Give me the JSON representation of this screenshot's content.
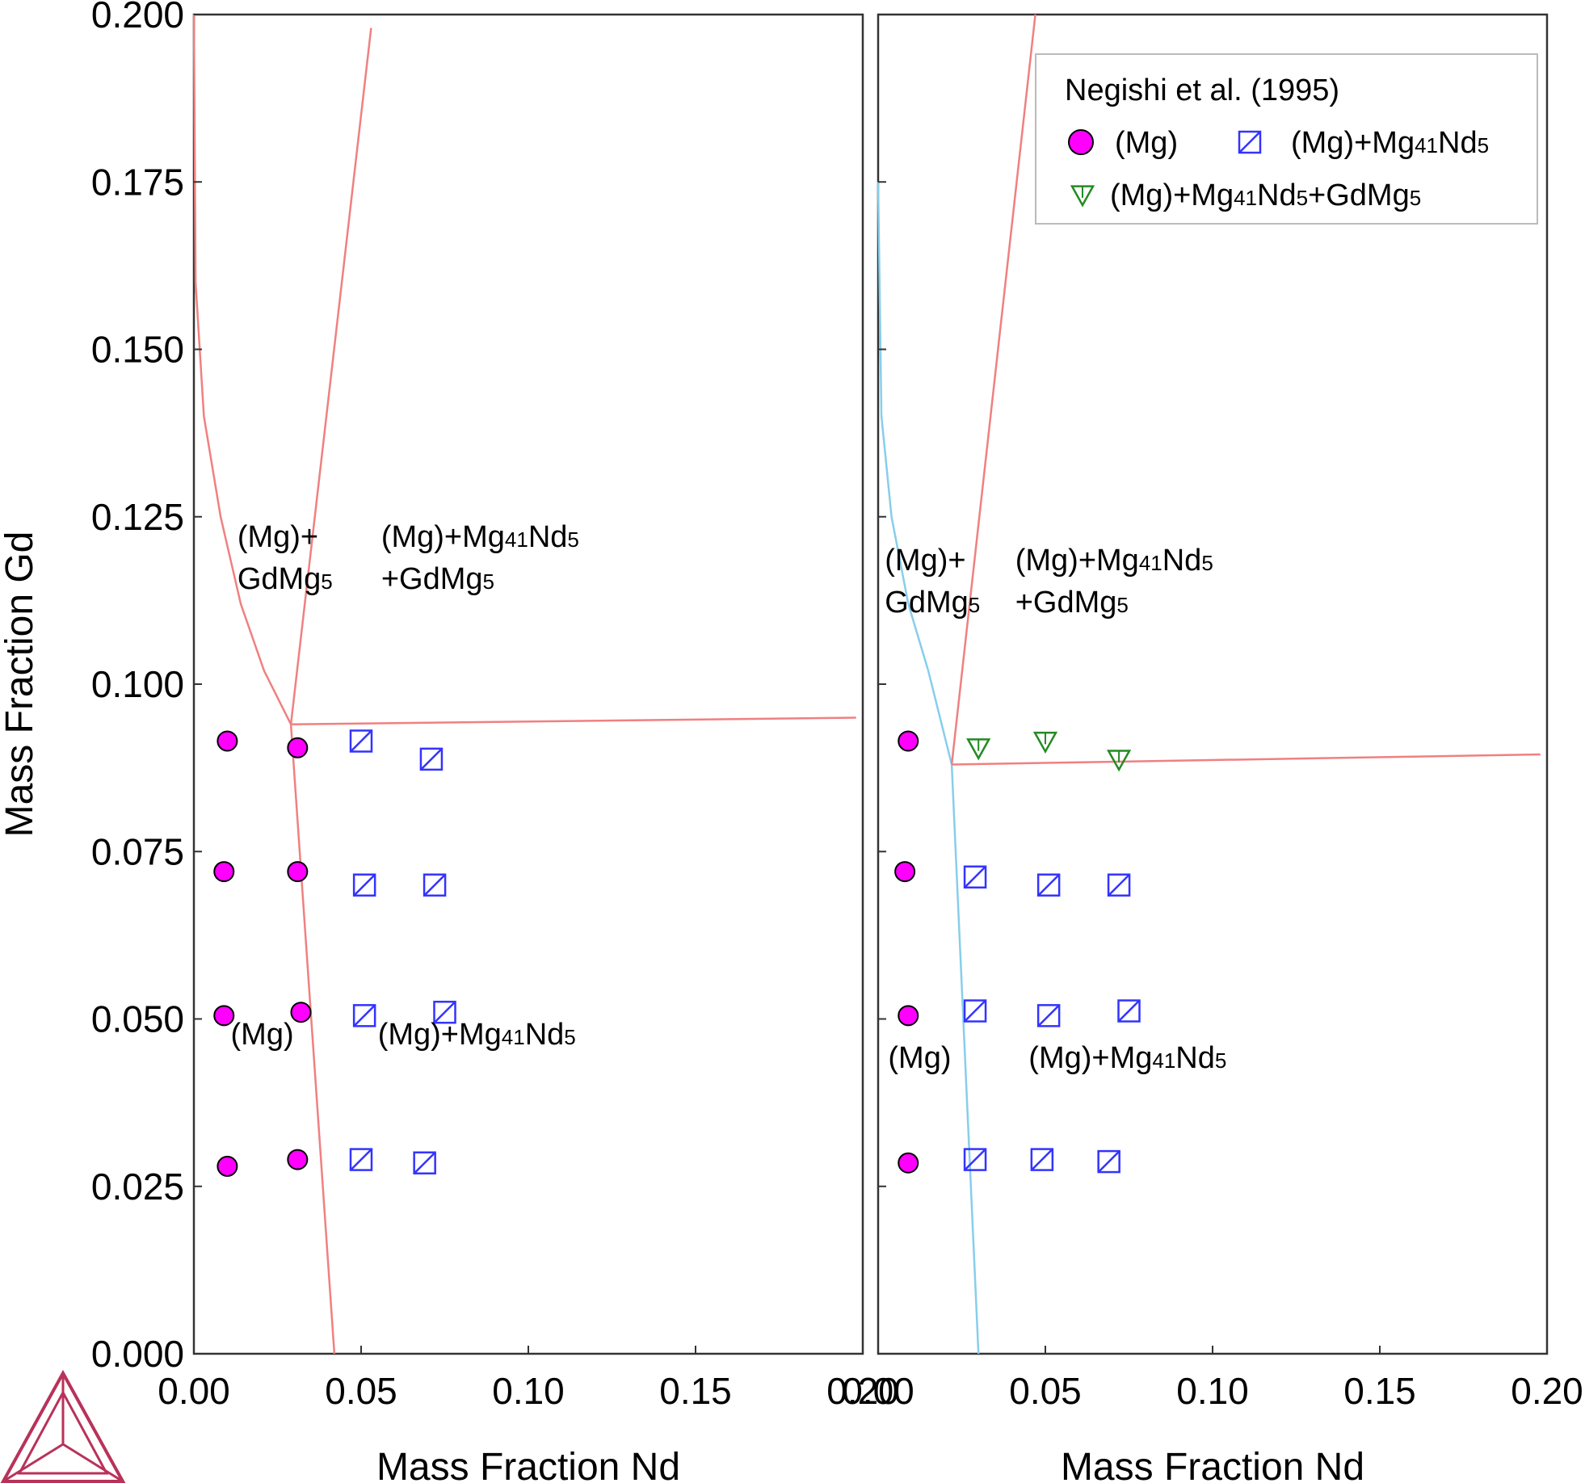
{
  "chart_data": {
    "type": "scatter",
    "xlabel": "Mass Fraction Nd",
    "ylabel": "Mass Fraction Gd",
    "xlim": [
      0,
      0.2
    ],
    "ylim": [
      0,
      0.2
    ],
    "x_ticks": [
      "0.00",
      "0.05",
      "0.10",
      "0.15",
      "0.20"
    ],
    "y_ticks": [
      "0.000",
      "0.025",
      "0.050",
      "0.075",
      "0.100",
      "0.125",
      "0.150",
      "0.175",
      "0.200"
    ],
    "legend": {
      "title": "Negishi et al. (1995)",
      "placement": "top-right of right panel",
      "entries": [
        {
          "key": "mg",
          "marker": "circle",
          "color": "#ff00ff",
          "label": "(Mg)"
        },
        {
          "key": "mg41",
          "marker": "square-slash",
          "color": "#3333ff",
          "label": "(Mg)+Mg41Nd5"
        },
        {
          "key": "mg41gd",
          "marker": "triangle-down",
          "color": "#228b22",
          "label": "(Mg)+Mg41Nd5+GdMg5"
        }
      ]
    },
    "colors": {
      "boundary": "#f08080",
      "boundary_alt": "#87ceeb",
      "frame": "#333333"
    },
    "panels": [
      {
        "name": "left",
        "lines": [
          {
            "color": "#f08080",
            "points": [
              [
                0.0,
                0.2
              ],
              [
                0.0005,
                0.16
              ],
              [
                0.003,
                0.14
              ],
              [
                0.008,
                0.125
              ],
              [
                0.014,
                0.112
              ],
              [
                0.021,
                0.102
              ],
              [
                0.029,
                0.094
              ]
            ]
          },
          {
            "color": "#f08080",
            "points": [
              [
                0.029,
                0.094
              ],
              [
                0.053,
                0.198
              ]
            ]
          },
          {
            "color": "#f08080",
            "points": [
              [
                0.029,
                0.094
              ],
              [
                0.198,
                0.095
              ]
            ]
          },
          {
            "color": "#f08080",
            "points": [
              [
                0.029,
                0.094
              ],
              [
                0.042,
                0.0
              ]
            ]
          }
        ],
        "series": [
          {
            "key": "mg",
            "points": [
              [
                0.01,
                0.0915
              ],
              [
                0.031,
                0.0905
              ],
              [
                0.009,
                0.072
              ],
              [
                0.031,
                0.072
              ],
              [
                0.009,
                0.0505
              ],
              [
                0.032,
                0.051
              ],
              [
                0.01,
                0.028
              ],
              [
                0.031,
                0.029
              ]
            ]
          },
          {
            "key": "mg41",
            "points": [
              [
                0.05,
                0.0915
              ],
              [
                0.071,
                0.0888
              ],
              [
                0.051,
                0.07
              ],
              [
                0.072,
                0.07
              ],
              [
                0.051,
                0.0505
              ],
              [
                0.075,
                0.051
              ],
              [
                0.05,
                0.029
              ],
              [
                0.069,
                0.0285
              ]
            ]
          }
        ],
        "annotations": [
          {
            "lines": [
              {
                "text": "(Mg)+",
                "sub": "",
                "after": ""
              },
              {
                "text": "GdMg",
                "sub": "5",
                "after": ""
              }
            ],
            "x": 0.013,
            "y": 0.1205
          },
          {
            "lines": [
              {
                "text": "(Mg)+Mg",
                "sub": "41",
                "after": "Nd",
                "sub2": "5"
              },
              {
                "text": "+GdMg",
                "sub": "5",
                "after": ""
              }
            ],
            "x": 0.056,
            "y": 0.1205
          },
          {
            "lines": [
              {
                "text": "(Mg)",
                "sub": "",
                "after": ""
              }
            ],
            "x": 0.011,
            "y": 0.0462
          },
          {
            "lines": [
              {
                "text": "(Mg)+Mg",
                "sub": "41",
                "after": "Nd",
                "sub2": "5"
              }
            ],
            "x": 0.055,
            "y": 0.0462
          }
        ]
      },
      {
        "name": "right",
        "lines": [
          {
            "color": "#87ceeb",
            "points": [
              [
                0.0,
                0.175
              ],
              [
                0.001,
                0.14
              ],
              [
                0.004,
                0.125
              ],
              [
                0.009,
                0.112
              ],
              [
                0.015,
                0.102
              ],
              [
                0.022,
                0.088
              ]
            ]
          },
          {
            "color": "#87ceeb",
            "points": [
              [
                0.022,
                0.088
              ],
              [
                0.03,
                0.0
              ]
            ]
          },
          {
            "color": "#f08080",
            "points": [
              [
                0.022,
                0.088
              ],
              [
                0.047,
                0.2
              ]
            ]
          },
          {
            "color": "#f08080",
            "points": [
              [
                0.022,
                0.088
              ],
              [
                0.198,
                0.0895
              ]
            ]
          }
        ],
        "series": [
          {
            "key": "mg",
            "points": [
              [
                0.009,
                0.0915
              ],
              [
                0.008,
                0.072
              ],
              [
                0.009,
                0.0505
              ],
              [
                0.009,
                0.0285
              ]
            ]
          },
          {
            "key": "mg41",
            "points": [
              [
                0.029,
                0.0712
              ],
              [
                0.051,
                0.07
              ],
              [
                0.072,
                0.07
              ],
              [
                0.029,
                0.0512
              ],
              [
                0.051,
                0.0505
              ],
              [
                0.075,
                0.0512
              ],
              [
                0.029,
                0.029
              ],
              [
                0.049,
                0.029
              ],
              [
                0.069,
                0.0287
              ]
            ]
          },
          {
            "key": "mg41gd",
            "points": [
              [
                0.03,
                0.0905
              ],
              [
                0.05,
                0.0915
              ],
              [
                0.072,
                0.0888
              ]
            ]
          }
        ],
        "annotations": [
          {
            "lines": [
              {
                "text": "(Mg)+",
                "sub": "",
                "after": ""
              },
              {
                "text": "GdMg",
                "sub": "5",
                "after": ""
              }
            ],
            "x": 0.002,
            "y": 0.117
          },
          {
            "lines": [
              {
                "text": "(Mg)+Mg",
                "sub": "41",
                "after": "Nd",
                "sub2": "5"
              },
              {
                "text": "+GdMg",
                "sub": "5",
                "after": ""
              }
            ],
            "x": 0.041,
            "y": 0.117
          },
          {
            "lines": [
              {
                "text": "(Mg)",
                "sub": "",
                "after": ""
              }
            ],
            "x": 0.003,
            "y": 0.0427
          },
          {
            "lines": [
              {
                "text": "(Mg)+Mg",
                "sub": "41",
                "after": "Nd",
                "sub2": "5"
              }
            ],
            "x": 0.045,
            "y": 0.0427
          }
        ]
      }
    ]
  },
  "logo": {
    "name": "triangle-logo-icon",
    "color": "#b8325a"
  }
}
